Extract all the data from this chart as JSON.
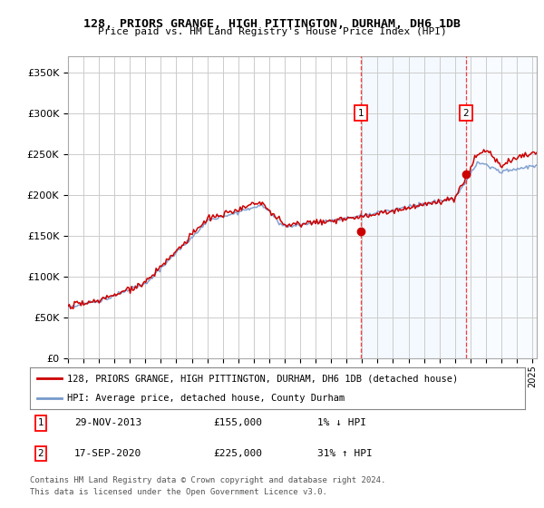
{
  "title": "128, PRIORS GRANGE, HIGH PITTINGTON, DURHAM, DH6 1DB",
  "subtitle": "Price paid vs. HM Land Registry's House Price Index (HPI)",
  "ylim": [
    0,
    370000
  ],
  "xlim_start": 1995.0,
  "xlim_end": 2025.3,
  "sale1_date": 2013.91,
  "sale1_price": 155000,
  "sale2_date": 2020.71,
  "sale2_price": 225000,
  "legend_line1": "128, PRIORS GRANGE, HIGH PITTINGTON, DURHAM, DH6 1DB (detached house)",
  "legend_line2": "HPI: Average price, detached house, County Durham",
  "footer1": "Contains HM Land Registry data © Crown copyright and database right 2024.",
  "footer2": "This data is licensed under the Open Government Licence v3.0.",
  "line_color_red": "#cc0000",
  "line_color_blue": "#7799cc",
  "shading_color": "#ddeeff",
  "grid_color": "#cccccc"
}
